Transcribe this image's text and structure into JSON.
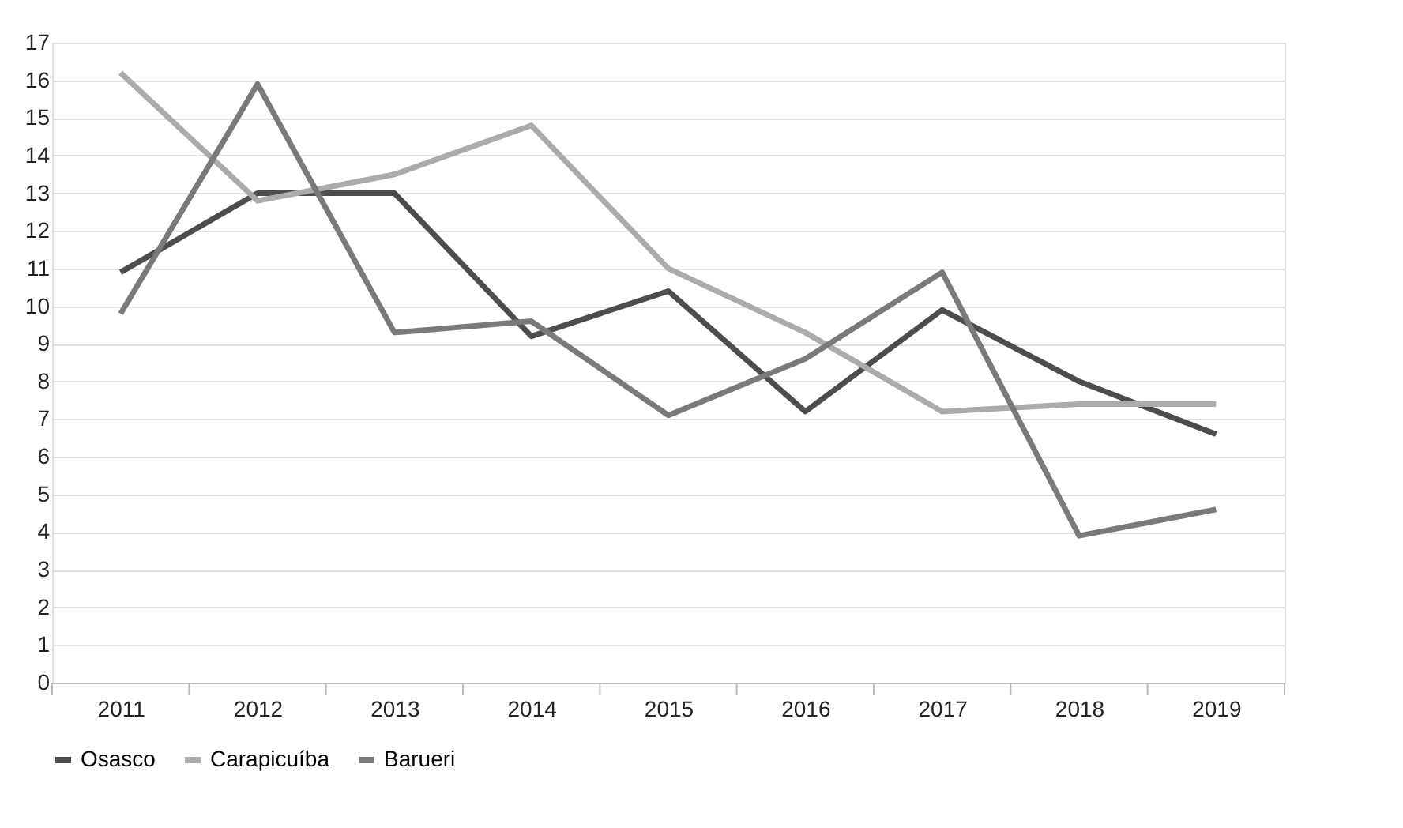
{
  "chart_data": {
    "type": "line",
    "categories": [
      "2011",
      "2012",
      "2013",
      "2014",
      "2015",
      "2016",
      "2017",
      "2018",
      "2019"
    ],
    "series": [
      {
        "name": "Osasco",
        "color": "#4d4d4d",
        "values": [
          10.9,
          13.0,
          13.0,
          9.2,
          10.4,
          7.2,
          9.9,
          8.0,
          6.6
        ]
      },
      {
        "name": "Carapicuíba",
        "color": "#ababab",
        "values": [
          16.2,
          12.8,
          13.5,
          14.8,
          11.0,
          9.3,
          7.2,
          7.4,
          7.4
        ]
      },
      {
        "name": "Barueri",
        "color": "#7a7a7a",
        "values": [
          9.8,
          15.9,
          9.3,
          9.6,
          7.1,
          8.6,
          10.9,
          3.9,
          4.6
        ]
      }
    ],
    "ylim": [
      0,
      17
    ],
    "yticks": [
      0,
      1,
      2,
      3,
      4,
      5,
      6,
      7,
      8,
      9,
      10,
      11,
      12,
      13,
      14,
      15,
      16,
      17
    ],
    "grid": "y",
    "legend": "bottom",
    "marker": "none",
    "line_style": "solid"
  }
}
